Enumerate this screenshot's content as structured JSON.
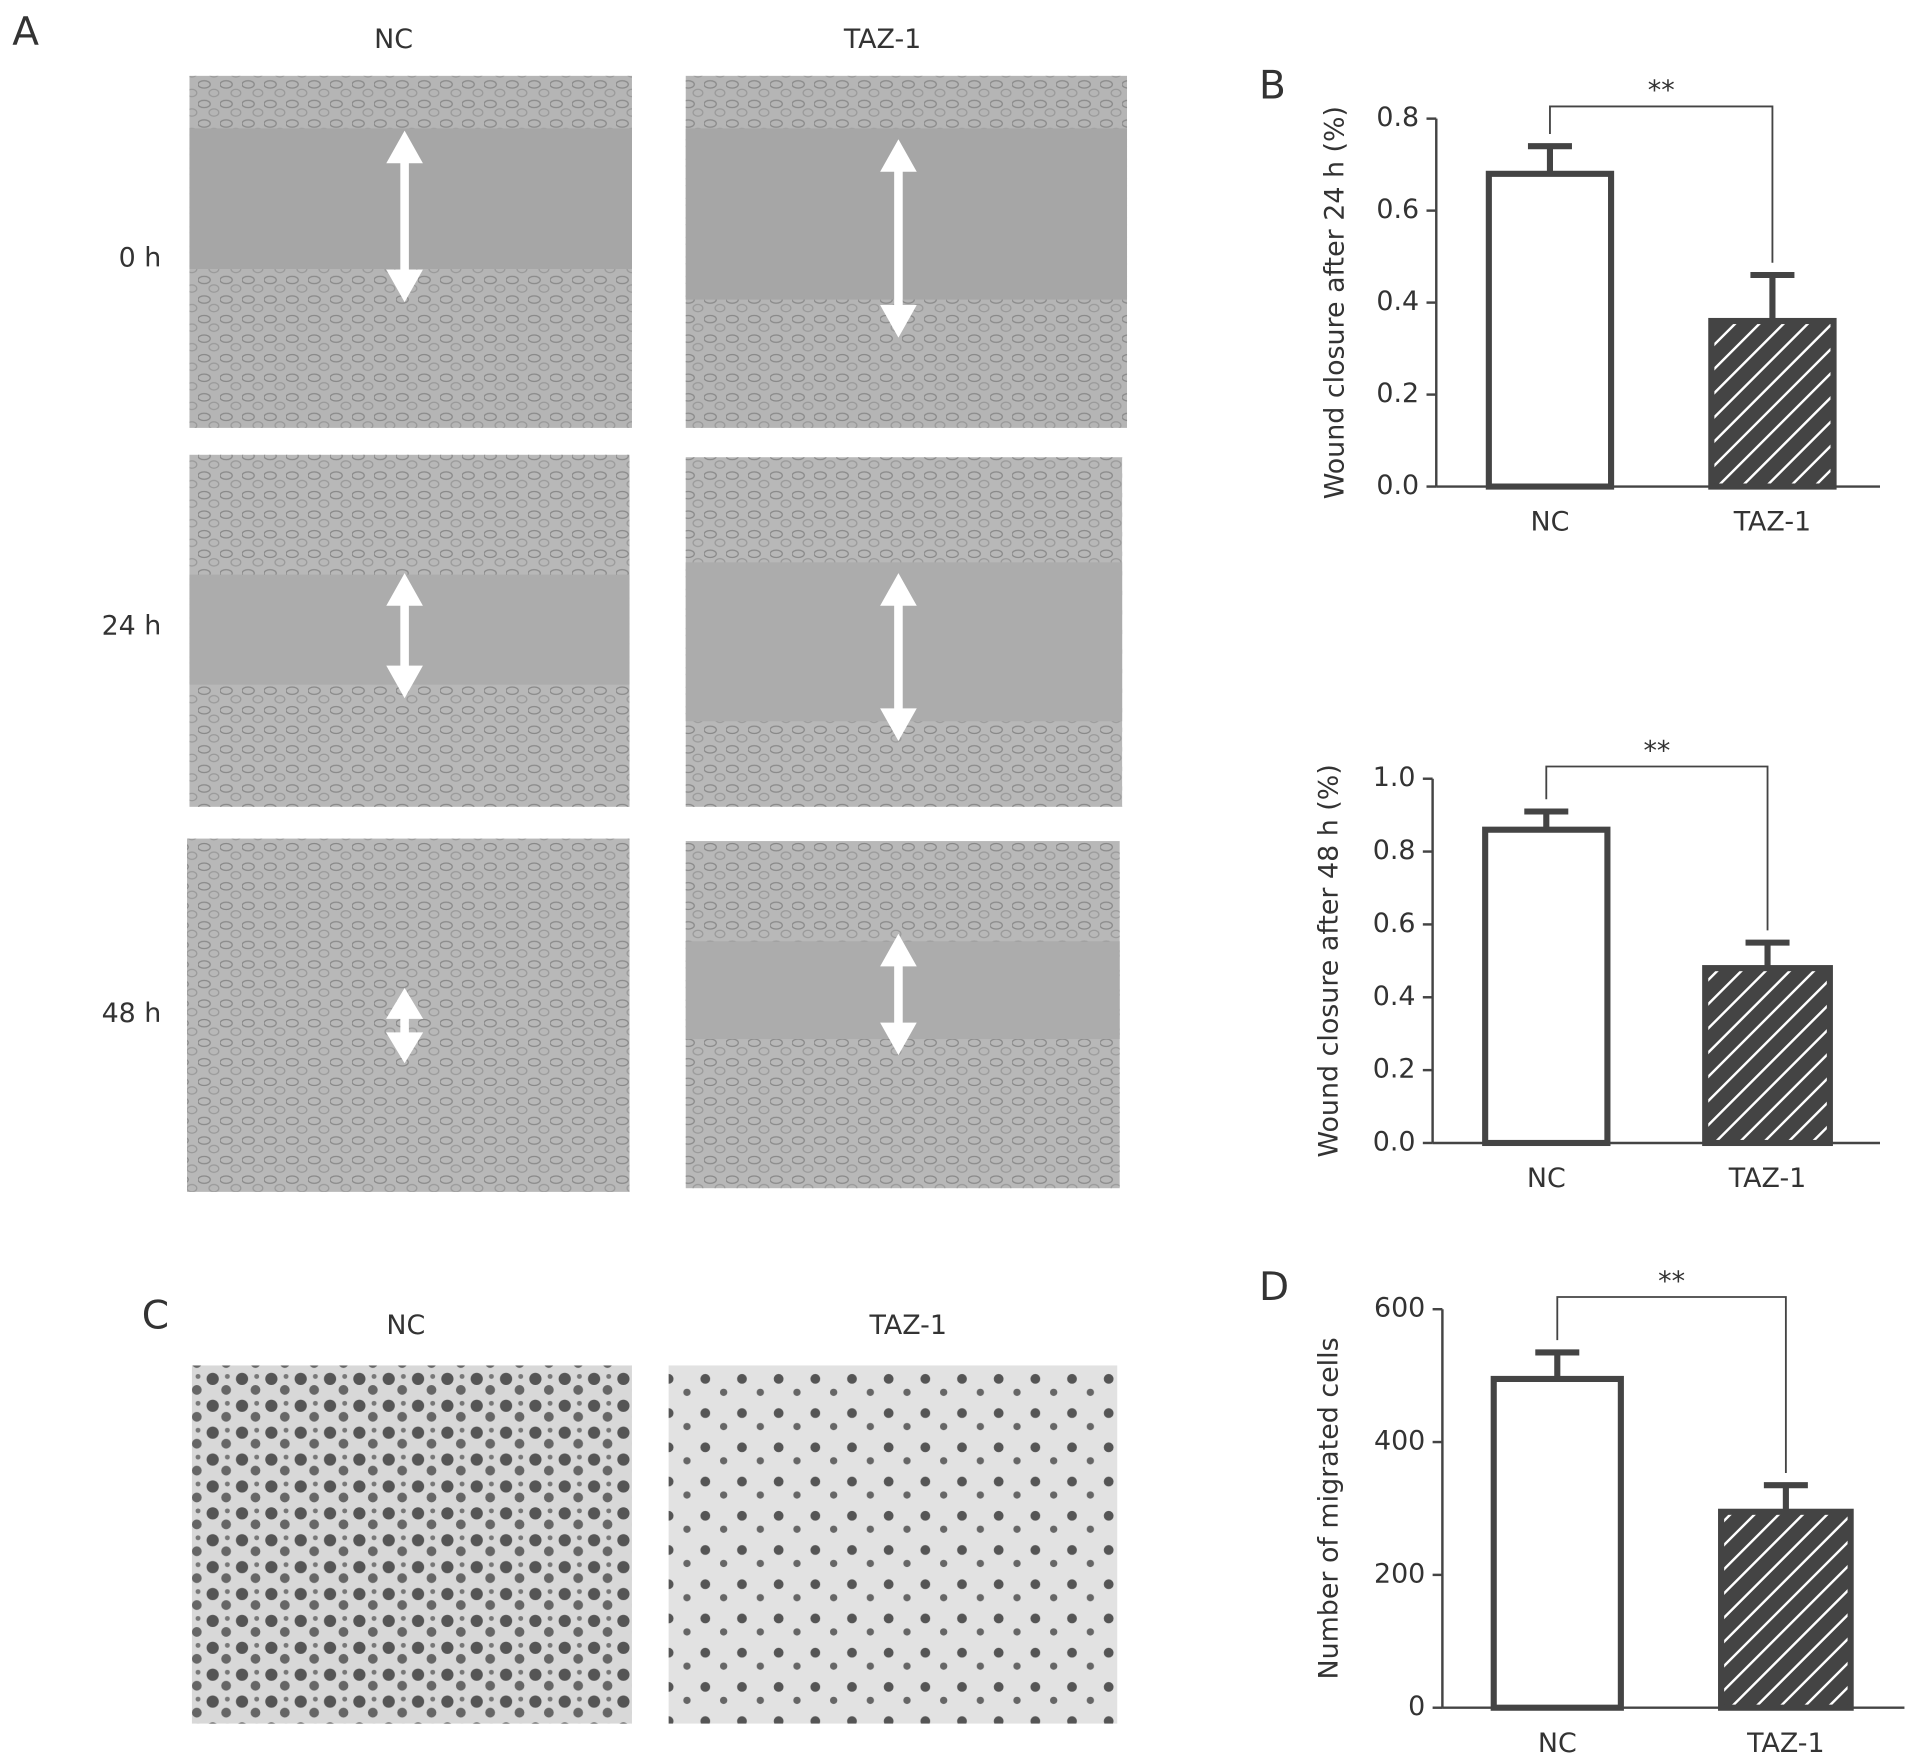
{
  "panels": {
    "A": {
      "label": "A",
      "columns": [
        "NC",
        "TAZ-1"
      ],
      "rows": [
        "0 h",
        "24 h",
        "48 h"
      ]
    },
    "C": {
      "label": "C",
      "columns": [
        "NC",
        "TAZ-1"
      ]
    }
  },
  "chart_data": [
    {
      "type": "bar",
      "panel_label": "B",
      "ylabel": "Wound closure after 24 h (%)",
      "categories": [
        "NC",
        "TAZ-1"
      ],
      "values": [
        0.68,
        0.36
      ],
      "errors": [
        0.06,
        0.1
      ],
      "hatch": [
        false,
        true
      ],
      "edgecolor": "#444444",
      "ylim": [
        0,
        0.8
      ],
      "yticks": [
        {
          "value": 0,
          "label": "0.0"
        },
        0.2,
        0.4,
        0.6,
        0.8
      ],
      "annotation": "**"
    },
    {
      "type": "bar",
      "ylabel": "Wound closure after 48 h (%)",
      "categories": [
        "NC",
        "TAZ-1"
      ],
      "values": [
        0.86,
        0.48
      ],
      "errors": [
        0.05,
        0.07
      ],
      "hatch": [
        false,
        true
      ],
      "edgecolor": "#444444",
      "ylim": [
        0,
        1.0
      ],
      "yticks": [
        {
          "value": 0,
          "label": "0.0"
        },
        0.2,
        0.4,
        0.6,
        0.8,
        {
          "value": 1.0,
          "label": "1.0"
        }
      ],
      "annotation": "**"
    },
    {
      "type": "bar",
      "panel_label": "D",
      "ylabel": "Number of migrated cells",
      "categories": [
        "NC",
        "TAZ-1"
      ],
      "values": [
        495,
        295
      ],
      "errors": [
        40,
        40
      ],
      "hatch": [
        false,
        true
      ],
      "edgecolor": "#444444",
      "ylim": [
        0,
        600
      ],
      "yticks": [
        0,
        200,
        400,
        600
      ],
      "annotation": "**"
    }
  ]
}
